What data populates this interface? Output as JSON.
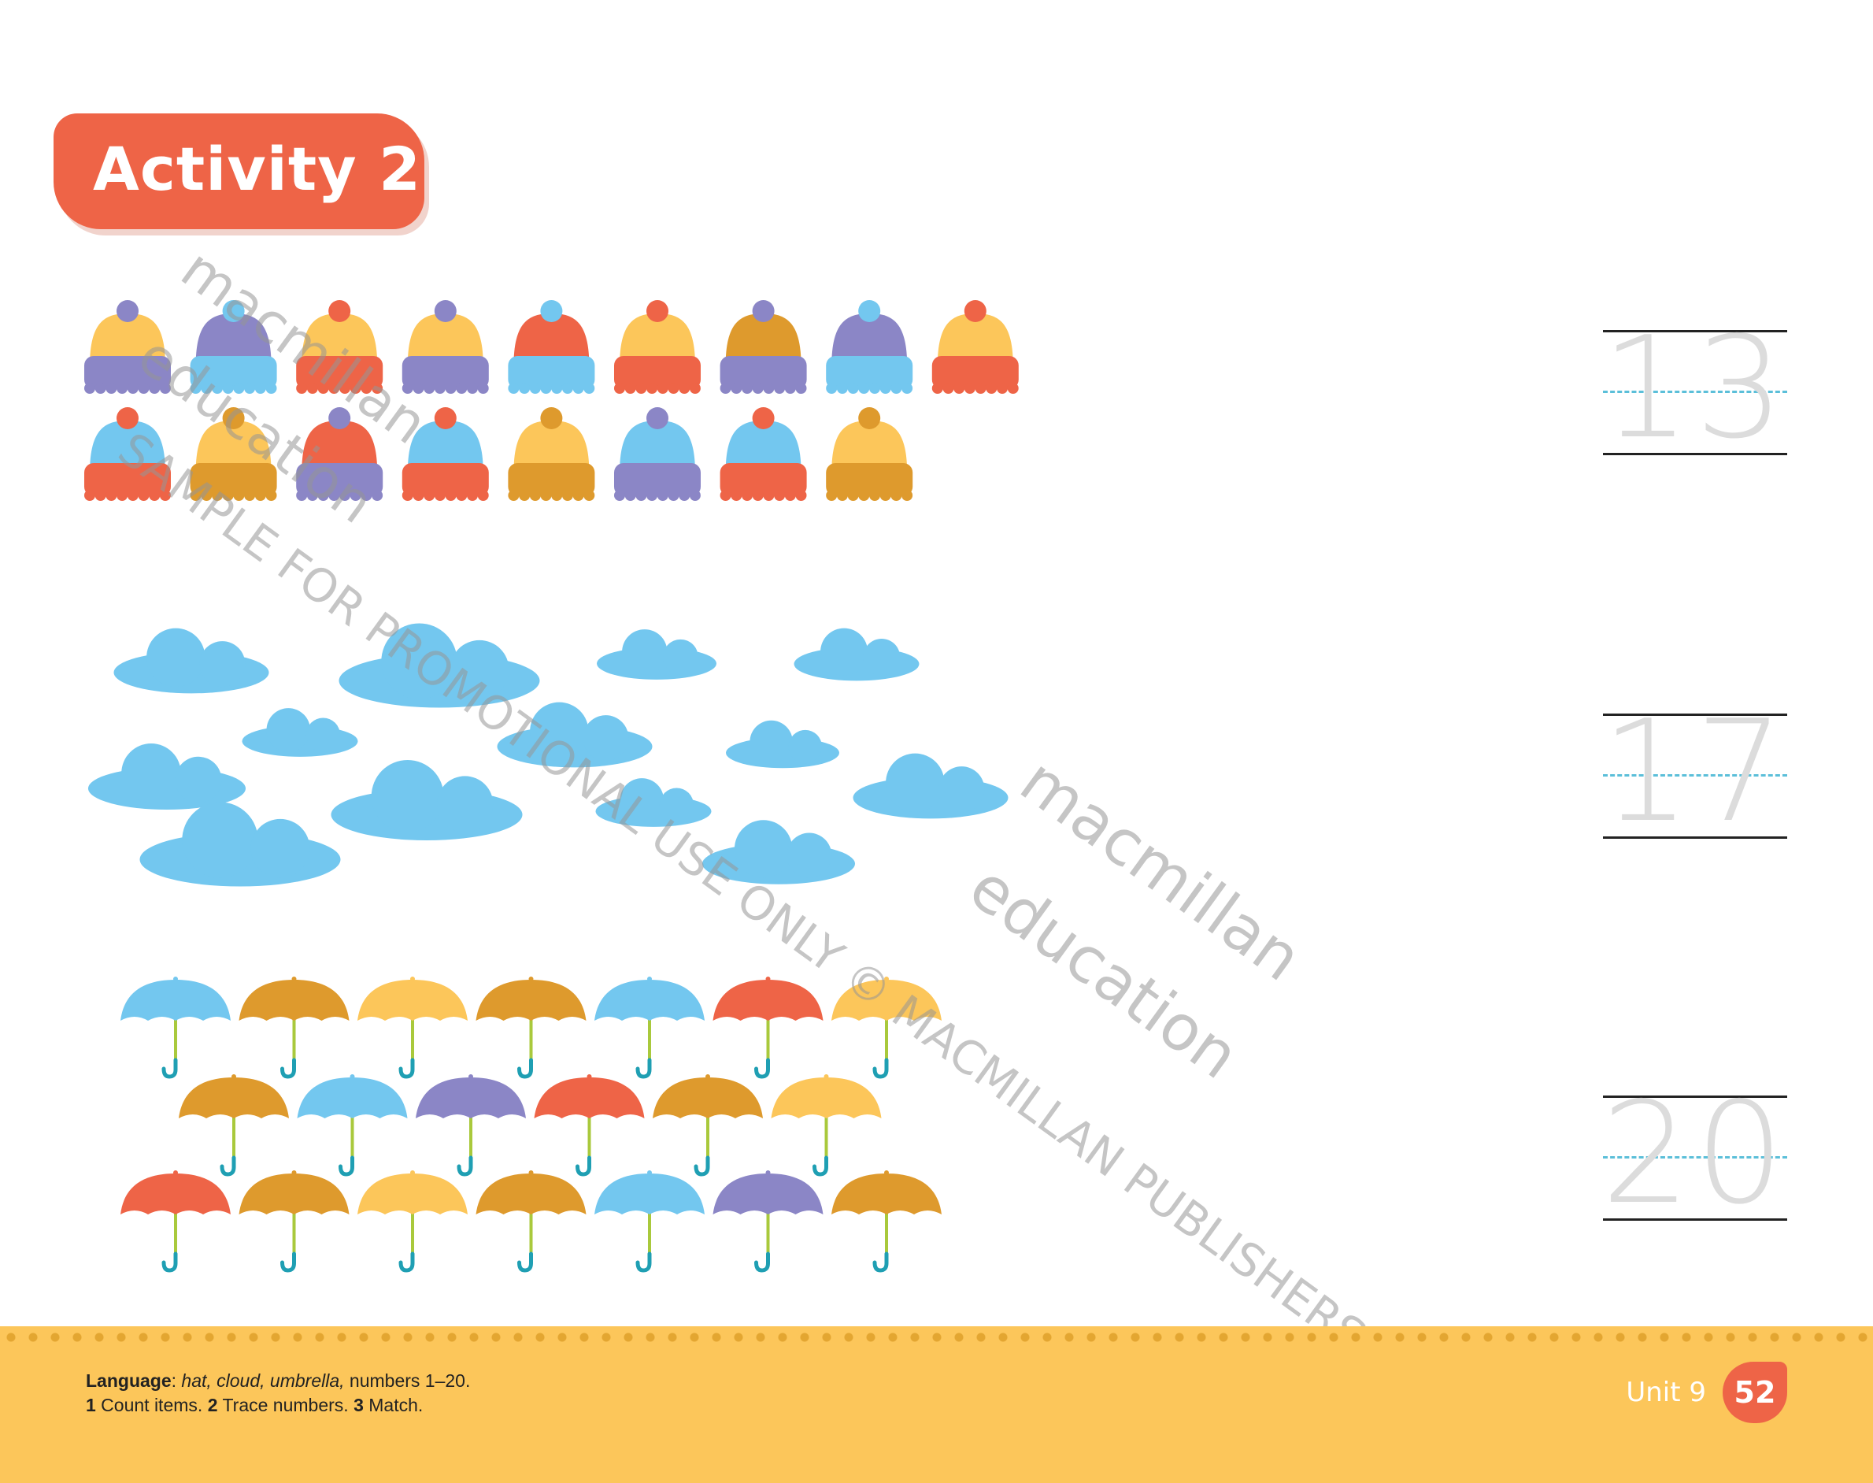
{
  "activity_title": "Activity 2",
  "colors": {
    "yellow": "#fcc65a",
    "purple": "#8b86c6",
    "blue": "#73c7ef",
    "red": "#ee6447",
    "mustard": "#de9a2d",
    "cloud": "#73c7ef",
    "handle": "#1f9fb3",
    "shaft": "#a9c93c",
    "brand": "#ee6447",
    "footer": "#fcc65a"
  },
  "hats": [
    [
      [
        "yellow",
        "purple",
        "purple"
      ],
      [
        "purple",
        "blue",
        "blue"
      ],
      [
        "yellow",
        "red",
        "red"
      ],
      [
        "yellow",
        "purple",
        "purple"
      ],
      [
        "red",
        "blue",
        "blue"
      ],
      [
        "yellow",
        "red",
        "red"
      ],
      [
        "mustard",
        "purple",
        "purple"
      ],
      [
        "purple",
        "blue",
        "blue"
      ],
      [
        "yellow",
        "red",
        "red"
      ]
    ],
    [
      [
        "blue",
        "red",
        "red"
      ],
      [
        "yellow",
        "mustard",
        "mustard"
      ],
      [
        "red",
        "purple",
        "purple"
      ],
      [
        "blue",
        "red",
        "red"
      ],
      [
        "yellow",
        "mustard",
        "mustard"
      ],
      [
        "blue",
        "purple",
        "purple"
      ],
      [
        "blue",
        "red",
        "red"
      ],
      [
        "yellow",
        "mustard",
        "mustard"
      ]
    ]
  ],
  "cloud_count": 13,
  "umbrellas": [
    [
      "blue",
      "mustard",
      "yellow",
      "mustard",
      "blue",
      "red",
      "yellow"
    ],
    [
      "mustard",
      "blue",
      "purple",
      "red",
      "mustard",
      "yellow"
    ],
    [
      "red",
      "mustard",
      "yellow",
      "mustard",
      "blue",
      "purple",
      "mustard"
    ]
  ],
  "trace_numbers": [
    "13",
    "17",
    "20"
  ],
  "footer": {
    "language_label": "Language",
    "language_words": "hat, cloud, umbrella,",
    "language_rest": " numbers 1–20.",
    "step1_num": "1",
    "step1": " Count items. ",
    "step2_num": "2",
    "step2": " Trace numbers. ",
    "step3_num": "3",
    "step3": " Match.",
    "unit": "Unit 9",
    "page": "52"
  },
  "watermark": {
    "brand": "macmillan",
    "brand2": "education",
    "notice": "SAMPLE FOR PROMOTIONAL USE ONLY © MACMILLAN PUBLISHERS LTD"
  }
}
